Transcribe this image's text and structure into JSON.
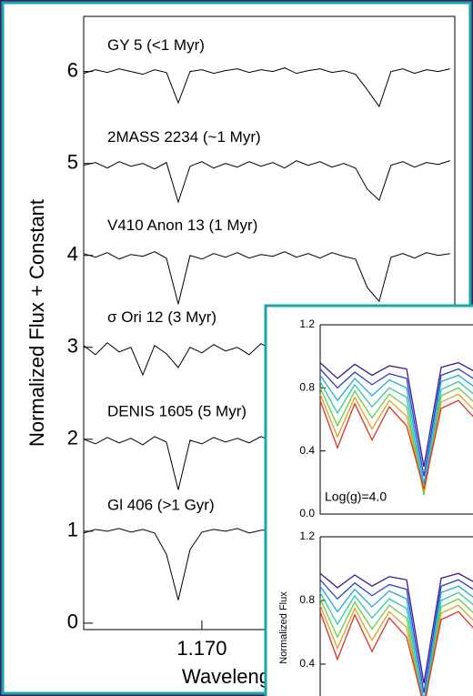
{
  "chart_data": [
    {
      "type": "line",
      "xlabel": "Wavelength (µm)",
      "ylabel": "Normalized Flux + Constant",
      "x": [
        1.165,
        1.1655,
        1.166,
        1.1665,
        1.167,
        1.1675,
        1.168,
        1.1685,
        1.169,
        1.1695,
        1.17,
        1.1705,
        1.171,
        1.1715,
        1.172,
        1.1725,
        1.173,
        1.1735,
        1.174,
        1.1745,
        1.175,
        1.1755,
        1.176,
        1.1765,
        1.177,
        1.1775,
        1.178,
        1.1785,
        1.179,
        1.1795,
        1.18,
        1.1805
      ],
      "xlim": [
        1.165,
        1.1807
      ],
      "xticks": [
        {
          "value": 1.17,
          "label": "1.170"
        }
      ],
      "ylim": [
        -0.07,
        6.6
      ],
      "yticks": [
        0,
        1,
        2,
        3,
        4,
        5,
        6
      ],
      "color": "#000000",
      "series": [
        {
          "name": "GY 5 (<1 Myr)",
          "values": [
            5.98,
            6.02,
            5.99,
            6.03,
            6.0,
            5.97,
            6.02,
            5.99,
            5.66,
            6.0,
            6.02,
            5.98,
            6.01,
            6.03,
            5.99,
            6.02,
            6.0,
            6.04,
            5.98,
            6.01,
            6.03,
            5.99,
            6.01,
            5.97,
            5.8,
            5.62,
            6.0,
            6.03,
            5.98,
            6.02,
            6.0,
            6.03
          ]
        },
        {
          "name": "2MASS 2234 (~1 Myr)",
          "values": [
            4.98,
            5.01,
            4.95,
            5.02,
            4.97,
            5.0,
            4.94,
            5.01,
            4.58,
            4.97,
            5.02,
            4.95,
            5.0,
            4.96,
            5.02,
            4.97,
            5.01,
            4.95,
            5.03,
            4.98,
            5.02,
            4.96,
            5.0,
            4.95,
            4.72,
            4.6,
            4.98,
            5.02,
            4.96,
            5.01,
            4.99,
            5.03
          ]
        },
        {
          "name": "V410 Anon 13 (1 Myr)",
          "values": [
            4.02,
            3.98,
            4.03,
            3.96,
            4.01,
            3.99,
            4.04,
            3.97,
            3.47,
            4.0,
            3.96,
            4.02,
            3.98,
            4.03,
            3.97,
            4.01,
            3.99,
            4.04,
            3.98,
            4.02,
            3.97,
            4.03,
            3.99,
            3.96,
            3.65,
            3.5,
            3.98,
            4.02,
            3.97,
            4.03,
            4.0,
            4.02
          ]
        },
        {
          "name": "σ Ori 12 (3 Myr)",
          "values": [
            3.02,
            2.92,
            3.05,
            2.95,
            3.0,
            2.7,
            3.02,
            2.93,
            2.78,
            3.0,
            2.94,
            3.03,
            2.96,
            3.0,
            2.92,
            3.04,
            2.97,
            3.01,
            2.93,
            3.05,
            2.96,
            3.0,
            2.94,
            3.02,
            2.8,
            2.75,
            2.98,
            3.03,
            2.95,
            3.02,
            2.97,
            3.0
          ]
        },
        {
          "name": "DENIS 1605 (5 Myr)",
          "values": [
            2.0,
            1.95,
            2.02,
            1.96,
            2.01,
            1.94,
            2.03,
            1.97,
            1.45,
            1.99,
            1.95,
            2.02,
            1.97,
            2.01,
            1.96,
            2.03,
            1.98,
            2.0,
            1.95,
            2.02,
            1.98,
            2.01,
            1.96,
            2.0,
            1.75,
            1.65,
            1.98,
            2.02,
            1.96,
            2.01,
            1.98,
            2.0
          ]
        },
        {
          "name": "Gl 406 (>1 Gyr)",
          "values": [
            0.98,
            1.02,
            1.0,
            1.03,
            0.99,
            1.02,
            0.98,
            0.75,
            0.25,
            0.8,
            0.99,
            1.02,
            1.0,
            1.03,
            0.98,
            1.01,
            1.02,
            0.99,
            1.01,
            0.98,
            1.02,
            1.0,
            0.97,
            0.9,
            0.55,
            0.4,
            0.92,
            1.0,
            1.02,
            0.99,
            1.01,
            1.0
          ]
        }
      ]
    },
    {
      "type": "line",
      "annotation": "Log(g)=4.0",
      "x": [
        1.165,
        1.166,
        1.167,
        1.168,
        1.169,
        1.17,
        1.171,
        1.172,
        1.173,
        1.174,
        1.175,
        1.176,
        1.177,
        1.178
      ],
      "xlim": [
        1.165,
        1.185
      ],
      "ylim": [
        0,
        1.2
      ],
      "yticks": [
        {
          "value": 0,
          "label": "0.0"
        },
        0.4,
        0.8,
        1.2
      ],
      "series": [
        {
          "color": "#3a1a8a",
          "values": [
            0.96,
            0.86,
            0.95,
            0.88,
            0.94,
            0.92,
            0.3,
            0.93,
            0.96,
            0.9,
            0.95,
            0.92,
            0.96,
            0.94
          ]
        },
        {
          "color": "#2a40d0",
          "values": [
            0.92,
            0.8,
            0.9,
            0.82,
            0.89,
            0.86,
            0.24,
            0.88,
            0.92,
            0.85,
            0.91,
            0.87,
            0.92,
            0.9
          ]
        },
        {
          "color": "#20a8e8",
          "values": [
            0.88,
            0.72,
            0.86,
            0.75,
            0.85,
            0.8,
            0.19,
            0.84,
            0.88,
            0.8,
            0.86,
            0.82,
            0.88,
            0.86
          ]
        },
        {
          "color": "#30c8a8",
          "values": [
            0.84,
            0.64,
            0.82,
            0.68,
            0.8,
            0.74,
            0.15,
            0.79,
            0.84,
            0.75,
            0.82,
            0.77,
            0.84,
            0.81
          ]
        },
        {
          "color": "#60d040",
          "values": [
            0.8,
            0.56,
            0.78,
            0.61,
            0.76,
            0.68,
            0.12,
            0.75,
            0.8,
            0.7,
            0.78,
            0.72,
            0.8,
            0.77
          ]
        },
        {
          "color": "#e0a020",
          "values": [
            0.76,
            0.49,
            0.74,
            0.54,
            0.72,
            0.62,
            0.14,
            0.71,
            0.76,
            0.65,
            0.74,
            0.67,
            0.76,
            0.73
          ]
        },
        {
          "color": "#e03020",
          "values": [
            0.72,
            0.42,
            0.7,
            0.47,
            0.68,
            0.56,
            0.16,
            0.67,
            0.72,
            0.6,
            0.7,
            0.62,
            0.72,
            0.69
          ]
        }
      ]
    },
    {
      "type": "line",
      "ylabel": "Normalized Flux",
      "x": [
        1.165,
        1.166,
        1.167,
        1.168,
        1.169,
        1.17,
        1.171,
        1.172,
        1.173,
        1.174,
        1.175,
        1.176,
        1.177,
        1.178
      ],
      "xlim": [
        1.165,
        1.185
      ],
      "ylim": [
        0,
        1.2
      ],
      "yticks": [
        0.4,
        0.8,
        1.2
      ],
      "series": [
        {
          "color": "#3a1a8a",
          "values": [
            0.97,
            0.88,
            0.96,
            0.89,
            0.95,
            0.93,
            0.28,
            0.94,
            0.97,
            0.91,
            0.96,
            0.93,
            0.97,
            0.95
          ]
        },
        {
          "color": "#2a40d0",
          "values": [
            0.93,
            0.81,
            0.91,
            0.83,
            0.9,
            0.87,
            0.22,
            0.89,
            0.93,
            0.86,
            0.92,
            0.88,
            0.93,
            0.91
          ]
        },
        {
          "color": "#20a8e8",
          "values": [
            0.89,
            0.73,
            0.87,
            0.76,
            0.86,
            0.81,
            0.17,
            0.85,
            0.89,
            0.81,
            0.87,
            0.83,
            0.89,
            0.87
          ]
        },
        {
          "color": "#30c8a8",
          "values": [
            0.85,
            0.65,
            0.83,
            0.69,
            0.81,
            0.75,
            0.13,
            0.8,
            0.85,
            0.76,
            0.83,
            0.78,
            0.85,
            0.82
          ]
        },
        {
          "color": "#60d040",
          "values": [
            0.81,
            0.57,
            0.79,
            0.62,
            0.77,
            0.69,
            0.1,
            0.76,
            0.81,
            0.71,
            0.79,
            0.73,
            0.81,
            0.78
          ]
        },
        {
          "color": "#e0a020",
          "values": [
            0.77,
            0.5,
            0.75,
            0.55,
            0.73,
            0.63,
            0.12,
            0.72,
            0.77,
            0.66,
            0.75,
            0.68,
            0.77,
            0.74
          ]
        },
        {
          "color": "#e03020",
          "values": [
            0.73,
            0.43,
            0.71,
            0.48,
            0.69,
            0.57,
            0.14,
            0.68,
            0.73,
            0.61,
            0.71,
            0.63,
            0.73,
            0.7
          ]
        }
      ]
    }
  ]
}
